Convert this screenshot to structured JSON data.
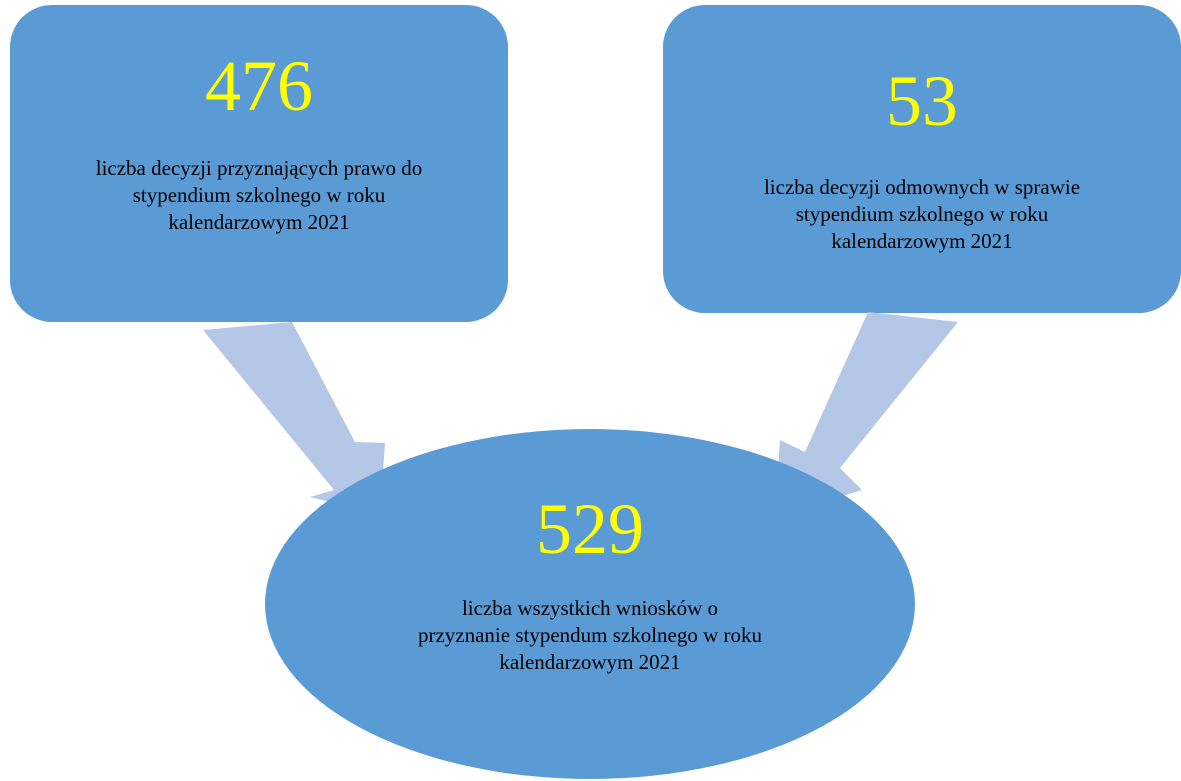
{
  "nodes": [
    {
      "value": "476",
      "label": [
        "liczba decyzji przyznających prawo do",
        "stypendium szkolnego w roku",
        "kalendarzowym 2021"
      ]
    },
    {
      "value": "53",
      "label": [
        "liczba decyzji odmownych w sprawie",
        "stypendium szkolnego w roku",
        "kalendarzowym 2021"
      ]
    },
    {
      "value": "529",
      "label": [
        "liczba wszystkich wniosków o",
        "przyznanie stypendum szkolnego w roku",
        "kalendarzowym 2021"
      ]
    }
  ]
}
